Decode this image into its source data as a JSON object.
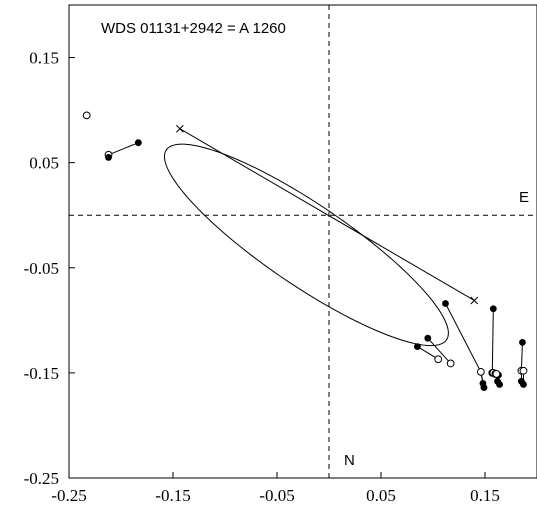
{
  "chart_data": {
    "type": "scatter",
    "title": "WDS 01131+2942 = A 1260",
    "xlabel": "",
    "ylabel": "",
    "xlim": [
      -0.25,
      0.2
    ],
    "ylim": [
      -0.25,
      0.2
    ],
    "x_ticks": [
      -0.25,
      -0.15,
      -0.05,
      0.05,
      0.15
    ],
    "y_ticks": [
      -0.25,
      -0.15,
      -0.05,
      0.05,
      0.15
    ],
    "x_tick_labels": [
      "-0.25",
      "-0.15",
      "-0.05",
      "0.05",
      "0.15"
    ],
    "y_tick_labels": [
      "-0.25",
      "-0.15",
      "-0.05",
      "0.05",
      "0.15"
    ],
    "grid": false,
    "direction_labels": {
      "east": "E",
      "north": "N"
    },
    "reference_lines": {
      "x0": 0,
      "y0": 0,
      "style": "dashed"
    },
    "orbit": {
      "a": 0.1622,
      "b": 0.0388,
      "center": [
        -0.0217,
        -0.0282
      ],
      "angle_deg": -33.8
    },
    "line_of_nodes": [
      [
        -0.1434,
        0.0823
      ],
      [
        0.1397,
        -0.0811
      ]
    ],
    "observations": [
      {
        "obs": [
          -0.1833,
          0.069
        ],
        "calc": [
          -0.212,
          0.0575
        ]
      },
      {
        "obs": [
          -0.212,
          0.055
        ],
        "calc": [
          -0.212,
          0.0575
        ]
      },
      {
        "obs": [
          0.085,
          -0.125
        ],
        "calc": [
          0.105,
          -0.137
        ]
      },
      {
        "obs": [
          0.095,
          -0.117
        ],
        "calc": [
          0.117,
          -0.141
        ]
      },
      {
        "obs": [
          0.112,
          -0.084
        ],
        "calc": [
          0.146,
          -0.149
        ]
      },
      {
        "obs": [
          0.148,
          -0.16
        ],
        "calc": [
          0.146,
          -0.149
        ]
      },
      {
        "obs": [
          0.149,
          -0.164
        ],
        "calc": [
          0.146,
          -0.149
        ]
      },
      {
        "obs": [
          0.158,
          -0.089
        ],
        "calc": [
          0.157,
          -0.15
        ]
      },
      {
        "obs": [
          0.163,
          -0.152
        ],
        "calc": [
          0.158,
          -0.15
        ]
      },
      {
        "obs": [
          0.162,
          -0.158
        ],
        "calc": [
          0.16,
          -0.151
        ]
      },
      {
        "obs": [
          0.164,
          -0.161
        ],
        "calc": [
          0.161,
          -0.151
        ]
      },
      {
        "obs": [
          0.186,
          -0.121
        ],
        "calc": [
          0.185,
          -0.148
        ]
      },
      {
        "obs": [
          0.185,
          -0.158
        ],
        "calc": [
          0.185,
          -0.148
        ]
      },
      {
        "obs": [
          0.187,
          -0.161
        ],
        "calc": [
          0.187,
          -0.148
        ]
      }
    ],
    "extra_calc_points": [
      [
        -0.233,
        0.095
      ]
    ]
  }
}
